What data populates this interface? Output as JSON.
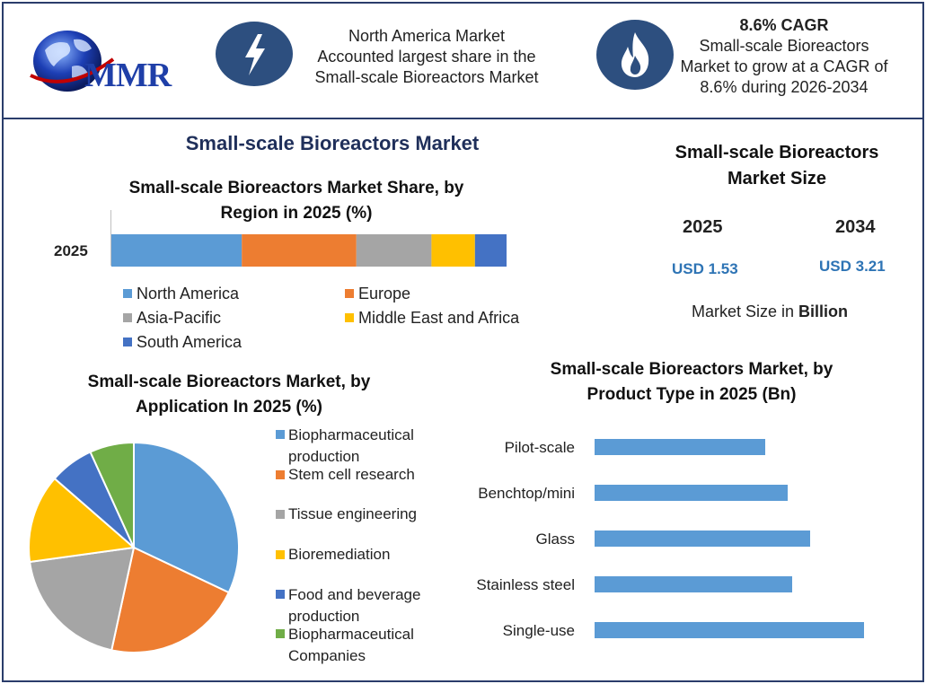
{
  "header": {
    "logo_text": "MMR",
    "box1_text": [
      "North America Market",
      "Accounted largest share in the",
      "Small-scale Bioreactors Market"
    ],
    "box1_icon": "lightning-bolt-icon",
    "box2_heading": "8.6% CAGR",
    "box2_text": [
      "Small-scale Bioreactors",
      "Market to grow at a CAGR of",
      "8.6% during 2026-2034"
    ],
    "box2_icon": "flame-icon"
  },
  "main_title": "Small-scale Bioreactors Market",
  "market_size": {
    "title_lines": [
      "Small-scale Bioreactors",
      "Market Size"
    ],
    "years": [
      "2025",
      "2034"
    ],
    "values": [
      "USD 1.53",
      "USD 3.21"
    ],
    "note_prefix": "Market Size in ",
    "note_bold": "Billion",
    "value_color": "#2e74b5"
  },
  "chart_data": [
    {
      "type": "bar",
      "orientation": "horizontal-stacked",
      "title_lines": [
        "Small-scale Bioreactors Market Share, by",
        "Region in 2025 (%)"
      ],
      "categories": [
        "2025"
      ],
      "series": [
        {
          "name": "North America",
          "values": [
            33
          ],
          "color": "#5b9bd5"
        },
        {
          "name": "Europe",
          "values": [
            29
          ],
          "color": "#ed7d31"
        },
        {
          "name": "Asia-Pacific",
          "values": [
            19
          ],
          "color": "#a5a5a5"
        },
        {
          "name": "Middle East and Africa",
          "values": [
            11
          ],
          "color": "#ffc000"
        },
        {
          "name": "South America",
          "values": [
            8
          ],
          "color": "#4472c4"
        }
      ],
      "legend": "bottom"
    },
    {
      "type": "pie",
      "title_lines": [
        "Small-scale Bioreactors Market, by",
        "Application In 2025 (%)"
      ],
      "slices": [
        {
          "name_lines": [
            "Biopharmaceutical",
            "production"
          ],
          "value": 33,
          "color": "#5b9bd5"
        },
        {
          "name_lines": [
            "Stem cell research"
          ],
          "value": 22,
          "color": "#ed7d31"
        },
        {
          "name_lines": [
            "Tissue engineering"
          ],
          "value": 20,
          "color": "#a5a5a5"
        },
        {
          "name_lines": [
            "Bioremediation"
          ],
          "value": 14,
          "color": "#ffc000"
        },
        {
          "name_lines": [
            "Food and beverage",
            "production"
          ],
          "value": 7,
          "color": "#4472c4"
        },
        {
          "name_lines": [
            "Biopharmaceutical",
            "Companies"
          ],
          "value": 7,
          "color": "#70ad47"
        }
      ],
      "legend": "right"
    },
    {
      "type": "bar",
      "orientation": "horizontal",
      "title_lines": [
        "Small-scale Bioreactors Market, by",
        "Product Type in 2025 (Bn)"
      ],
      "categories": [
        "Pilot-scale",
        "Benchtop/mini",
        "Glass",
        "Stainless steel",
        "Single-use"
      ],
      "values": [
        0.19,
        0.215,
        0.24,
        0.22,
        0.3
      ],
      "color": "#5b9bd5",
      "xlim": [
        0,
        0.35
      ],
      "grid": false
    }
  ]
}
